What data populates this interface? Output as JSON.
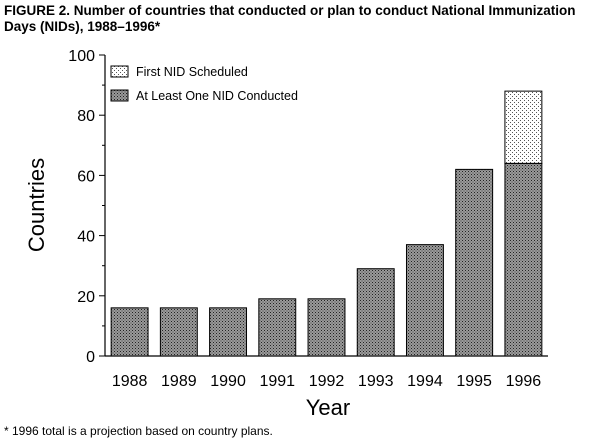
{
  "figure_title": "FIGURE 2. Number of countries that conducted or plan to conduct National Immunization Days (NIDs), 1988–1996*",
  "footnote": "* 1996 total is a projection based on country plans.",
  "chart_data": {
    "type": "bar",
    "stacked": true,
    "title": "",
    "xlabel": "Year",
    "ylabel": "Countries",
    "ylim": [
      0,
      100
    ],
    "yticks": [
      0,
      20,
      40,
      60,
      80,
      100
    ],
    "categories": [
      "1988",
      "1989",
      "1990",
      "1991",
      "1992",
      "1993",
      "1994",
      "1995",
      "1996"
    ],
    "series": [
      {
        "name": "At Least One NID Conducted",
        "values": [
          16,
          16,
          16,
          19,
          19,
          29,
          37,
          62,
          64
        ],
        "pattern": "dense-dots"
      },
      {
        "name": "First NID Scheduled",
        "values": [
          0,
          0,
          0,
          0,
          0,
          0,
          0,
          0,
          24
        ],
        "pattern": "sparse-dots"
      }
    ],
    "legend_placement": "top-left",
    "grid": false
  }
}
